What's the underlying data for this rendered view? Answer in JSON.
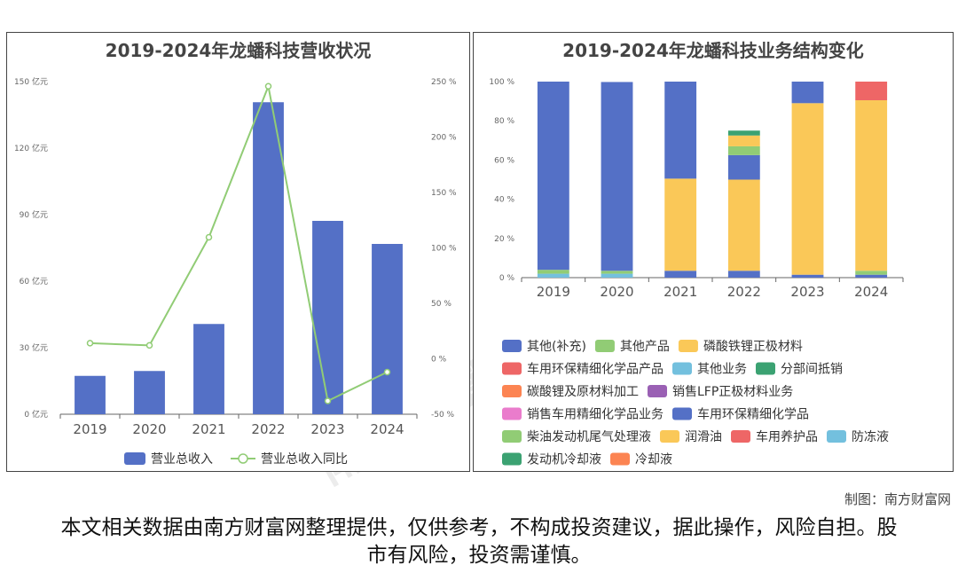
{
  "left_title": "2019-2024年龙蟠科技营收状况",
  "right_title": "2019-2024年龙蟠科技业务结构变化",
  "credit": "制图：南方财富网",
  "disclaimer": "本文相关数据由南方财富网整理提供，仅供参考，不构成投资建议，据此操作，风险自担。股市有风险，投资需谨慎。",
  "chart_data": [
    {
      "type": "bar",
      "title": "2019-2024年龙蟠科技营收状况",
      "categories": [
        "2019",
        "2020",
        "2021",
        "2022",
        "2023",
        "2024"
      ],
      "y_ticks": [
        "0 亿元",
        "30 亿元",
        "60 亿元",
        "90 亿元",
        "120 亿元",
        "150 亿元"
      ],
      "y2_ticks": [
        "-50 %",
        "0 %",
        "50 %",
        "100 %",
        "150 %",
        "200 %",
        "250 %"
      ],
      "ylim": [
        0,
        150
      ],
      "y2lim": [
        -50,
        250
      ],
      "series": [
        {
          "name": "营业总收入",
          "type": "bar",
          "axis": "left",
          "color": "#5470c6",
          "values": [
            17.3,
            19.5,
            40.7,
            140.7,
            87.2,
            76.8
          ]
        },
        {
          "name": "营业总收入同比",
          "type": "line",
          "axis": "right",
          "color": "#91cc75",
          "values": [
            14.1,
            12.1,
            109.6,
            245.8,
            -38.0,
            -12.0
          ]
        }
      ],
      "legend": "bottom",
      "grid": false
    },
    {
      "type": "bar",
      "stacked": true,
      "title": "2019-2024年龙蟠科技业务结构变化",
      "categories": [
        "2019",
        "2020",
        "2021",
        "2022",
        "2023",
        "2024"
      ],
      "y_ticks": [
        "0 %",
        "20 %",
        "40 %",
        "60 %",
        "80 %",
        "100 %"
      ],
      "ylim": [
        0,
        100
      ],
      "series": [
        {
          "name": "其他(补充)",
          "color": "#5470c6",
          "values": [
            0,
            0,
            0,
            0,
            0,
            0
          ]
        },
        {
          "name": "其他产品",
          "color": "#91cc75",
          "values": [
            0,
            0,
            0,
            0,
            0,
            0
          ]
        },
        {
          "name": "磷酸铁锂正极材料",
          "color": "#fac858",
          "values": [
            0,
            0,
            0,
            0,
            0,
            0
          ]
        },
        {
          "name": "车用环保精细化学品产品",
          "color": "#ee6666",
          "values": [
            0,
            0,
            0,
            0,
            0,
            0
          ]
        },
        {
          "name": "其他业务",
          "color": "#73c0de",
          "values": [
            0,
            0,
            0,
            0,
            0,
            0
          ]
        },
        {
          "name": "分部间抵销",
          "color": "#3ba272",
          "values": [
            0,
            0,
            0,
            0,
            0,
            0
          ]
        },
        {
          "name": "碳酸锂及原材料加工",
          "color": "#fc8452",
          "values": [
            0,
            0,
            0,
            0,
            0,
            0
          ]
        },
        {
          "name": "销售LFP正极材料业务",
          "color": "#9a60b4",
          "values": [
            0,
            0,
            0,
            0,
            0,
            0
          ]
        },
        {
          "name": "销售车用精细化学品业务",
          "color": "#ea7ccc",
          "values": [
            0,
            0,
            0,
            0,
            0,
            0
          ]
        },
        {
          "name": "车用环保精细化学品",
          "color": "#5470c6",
          "values": [
            0,
            0,
            0,
            0,
            0,
            0
          ]
        },
        {
          "name": "柴油发动机尾气处理液",
          "color": "#91cc75",
          "values": [
            0,
            0,
            0,
            0,
            0,
            0
          ]
        },
        {
          "name": "润滑油",
          "color": "#fac858",
          "values": [
            0,
            0,
            0,
            0,
            0,
            0
          ]
        },
        {
          "name": "车用养护品",
          "color": "#ee6666",
          "values": [
            0,
            0,
            0,
            0,
            0,
            0
          ]
        },
        {
          "name": "防冻液",
          "color": "#73c0de",
          "values": [
            0,
            0,
            0,
            0,
            0,
            0
          ]
        },
        {
          "name": "发动机冷却液",
          "color": "#3ba272",
          "values": [
            0,
            0,
            0,
            0,
            0,
            0
          ]
        },
        {
          "name": "冷却液",
          "color": "#fc8452",
          "values": [
            0,
            0,
            0,
            0,
            0,
            0
          ]
        }
      ],
      "stacks": [
        [
          {
            "color": "#73c0de",
            "value": 2.0
          },
          {
            "color": "#91cc75",
            "value": 2.0
          },
          {
            "color": "#5470c6",
            "value": 96.0
          }
        ],
        [
          {
            "color": "#73c0de",
            "value": 2.0
          },
          {
            "color": "#91cc75",
            "value": 1.5
          },
          {
            "color": "#5470c6",
            "value": 96.3
          }
        ],
        [
          {
            "color": "#5470c6",
            "value": 3.5
          },
          {
            "color": "#fac858",
            "value": 47.0
          },
          {
            "color": "#5470c6",
            "value": 49.5
          }
        ],
        [
          {
            "color": "#5470c6",
            "value": 3.5
          },
          {
            "color": "#fac858",
            "value": 46.5
          },
          {
            "color": "#5470c6",
            "value": 12.5
          },
          {
            "color": "#91cc75",
            "value": 4.5
          },
          {
            "color": "#fac858",
            "value": 5.5
          },
          {
            "color": "#3ba272",
            "value": 2.5
          }
        ],
        [
          {
            "color": "#5470c6",
            "value": 1.5
          },
          {
            "color": "#fac858",
            "value": 87.5
          },
          {
            "color": "#5470c6",
            "value": 11.0
          }
        ],
        [
          {
            "color": "#5470c6",
            "value": 1.5
          },
          {
            "color": "#91cc75",
            "value": 2.0
          },
          {
            "color": "#fac858",
            "value": 87.0
          },
          {
            "color": "#ee6666",
            "value": 9.5
          }
        ]
      ],
      "legend": "bottom",
      "grid": false
    }
  ]
}
